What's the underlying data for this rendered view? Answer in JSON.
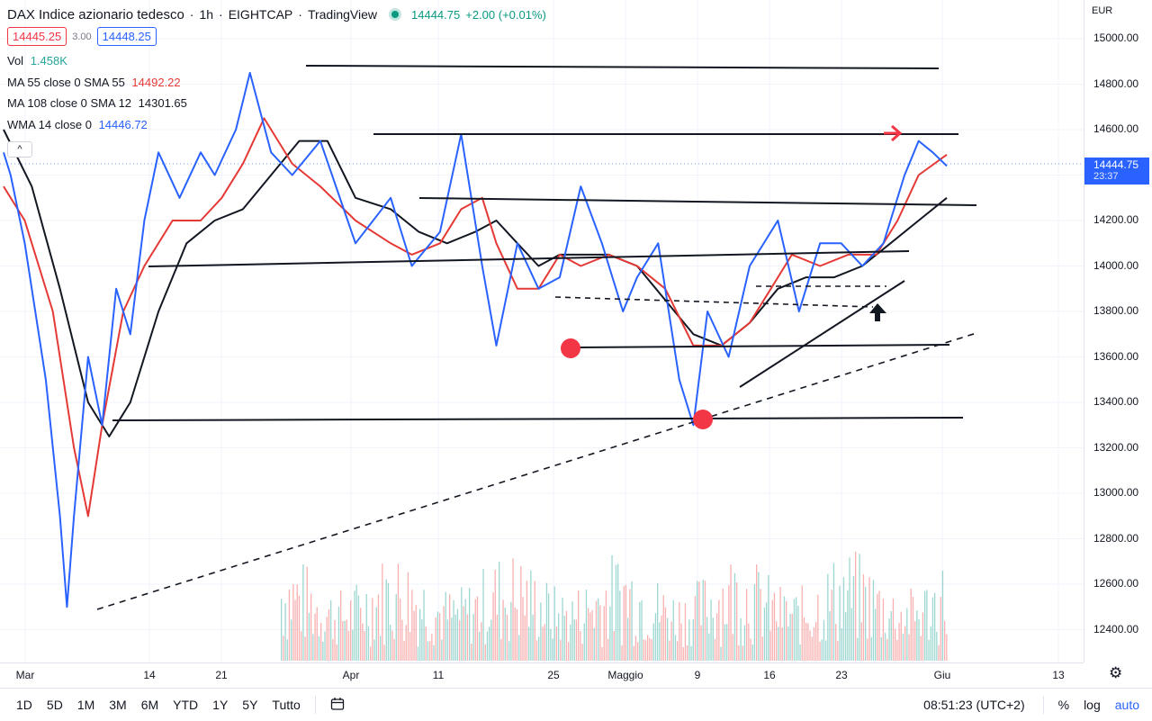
{
  "header": {
    "symbol": "DAX Indice azionario tedesco",
    "interval": "1h",
    "broker": "EIGHTCAP",
    "platform": "TradingView",
    "last_price": "14444.75",
    "change": "+2.00 (+0.01%)",
    "bid": "14445.25",
    "spread": "3.00",
    "ask": "14448.25"
  },
  "indicators": [
    {
      "name": "Vol",
      "value": "1.458K",
      "color": "#26a69a"
    },
    {
      "name": "MA 55 close 0 SMA 55",
      "value": "14492.22",
      "color": "#e53935"
    },
    {
      "name": "MA 108 close 0 SMA 12",
      "value": "14301.65",
      "color": "#131722"
    },
    {
      "name": "WMA 14 close 0",
      "value": "14446.72",
      "color": "#2962ff"
    }
  ],
  "collapse_symbol": "^",
  "price_axis": {
    "currency": "EUR",
    "labels": [
      "15000.00",
      "14800.00",
      "14600.00",
      "14400.00",
      "14200.00",
      "14000.00",
      "13800.00",
      "13600.00",
      "13400.00",
      "13200.00",
      "13000.00",
      "12800.00",
      "12600.00",
      "12400.00"
    ],
    "current_price": "14444.75",
    "countdown": "23:37"
  },
  "time_axis": {
    "labels": [
      "Mar",
      "14",
      "21",
      "Apr",
      "11",
      "25",
      "Maggio",
      "9",
      "16",
      "23",
      "Giu",
      "13"
    ]
  },
  "bottom_bar": {
    "timeframes": [
      "1D",
      "5D",
      "1M",
      "3M",
      "6M",
      "YTD",
      "1Y",
      "5Y",
      "Tutto"
    ],
    "clock": "08:51:23 (UTC+2)",
    "percent": "%",
    "log": "log",
    "auto": "auto"
  },
  "icons": {
    "settings": "gear-icon",
    "calendar": "calendar-range-icon",
    "live": "live-status-dot"
  },
  "colors": {
    "price_line": "#2962ff",
    "ma55": "#e53935",
    "ma108": "#131722",
    "annotation_red": "#f23645",
    "volume_up": "#26a69a",
    "volume_down": "#ef5350"
  },
  "chart_data": {
    "type": "line",
    "y_range": [
      12300,
      15060
    ],
    "series": [
      {
        "name": "WMA 14 close 0",
        "points": [
          [
            0,
            14500
          ],
          [
            0.01,
            14400
          ],
          [
            0.03,
            14100
          ],
          [
            0.06,
            13500
          ],
          [
            0.08,
            12900
          ],
          [
            0.09,
            12500
          ],
          [
            0.1,
            12900
          ],
          [
            0.12,
            13600
          ],
          [
            0.14,
            13300
          ],
          [
            0.16,
            13900
          ],
          [
            0.18,
            13700
          ],
          [
            0.2,
            14200
          ],
          [
            0.22,
            14500
          ],
          [
            0.25,
            14300
          ],
          [
            0.28,
            14500
          ],
          [
            0.3,
            14400
          ],
          [
            0.33,
            14600
          ],
          [
            0.35,
            14850
          ],
          [
            0.38,
            14500
          ],
          [
            0.41,
            14400
          ],
          [
            0.45,
            14550
          ],
          [
            0.5,
            14100
          ],
          [
            0.55,
            14300
          ],
          [
            0.58,
            14000
          ],
          [
            0.62,
            14150
          ],
          [
            0.65,
            14580
          ],
          [
            0.68,
            14000
          ],
          [
            0.7,
            13650
          ],
          [
            0.73,
            14100
          ],
          [
            0.76,
            13900
          ],
          [
            0.79,
            13950
          ],
          [
            0.82,
            14350
          ],
          [
            0.85,
            14100
          ],
          [
            0.88,
            13800
          ],
          [
            0.9,
            13950
          ],
          [
            0.93,
            14100
          ],
          [
            0.96,
            13500
          ],
          [
            0.98,
            13300
          ],
          [
            1.0,
            13800
          ],
          [
            1.03,
            13600
          ],
          [
            1.06,
            14000
          ],
          [
            1.1,
            14200
          ],
          [
            1.13,
            13800
          ],
          [
            1.16,
            14100
          ],
          [
            1.19,
            14100
          ],
          [
            1.22,
            14000
          ],
          [
            1.25,
            14100
          ],
          [
            1.28,
            14400
          ],
          [
            1.3,
            14550
          ],
          [
            1.32,
            14500
          ],
          [
            1.34,
            14440
          ]
        ]
      },
      {
        "name": "MA 55 close 0 SMA 55",
        "points": [
          [
            0,
            14350
          ],
          [
            0.03,
            14200
          ],
          [
            0.07,
            13800
          ],
          [
            0.1,
            13200
          ],
          [
            0.12,
            12900
          ],
          [
            0.14,
            13300
          ],
          [
            0.17,
            13800
          ],
          [
            0.2,
            14000
          ],
          [
            0.24,
            14200
          ],
          [
            0.28,
            14200
          ],
          [
            0.31,
            14300
          ],
          [
            0.34,
            14450
          ],
          [
            0.37,
            14650
          ],
          [
            0.41,
            14450
          ],
          [
            0.45,
            14350
          ],
          [
            0.5,
            14200
          ],
          [
            0.55,
            14100
          ],
          [
            0.58,
            14050
          ],
          [
            0.62,
            14100
          ],
          [
            0.65,
            14250
          ],
          [
            0.68,
            14300
          ],
          [
            0.7,
            14100
          ],
          [
            0.73,
            13900
          ],
          [
            0.76,
            13900
          ],
          [
            0.79,
            14050
          ],
          [
            0.82,
            14000
          ],
          [
            0.86,
            14050
          ],
          [
            0.9,
            14000
          ],
          [
            0.94,
            13900
          ],
          [
            0.98,
            13650
          ],
          [
            1.02,
            13650
          ],
          [
            1.06,
            13750
          ],
          [
            1.09,
            13900
          ],
          [
            1.12,
            14050
          ],
          [
            1.16,
            14000
          ],
          [
            1.2,
            14050
          ],
          [
            1.24,
            14050
          ],
          [
            1.27,
            14200
          ],
          [
            1.3,
            14400
          ],
          [
            1.34,
            14490
          ]
        ]
      },
      {
        "name": "MA 108 close 0 SMA 12",
        "points": [
          [
            0,
            14600
          ],
          [
            0.04,
            14350
          ],
          [
            0.08,
            13900
          ],
          [
            0.12,
            13400
          ],
          [
            0.15,
            13250
          ],
          [
            0.18,
            13400
          ],
          [
            0.22,
            13800
          ],
          [
            0.26,
            14100
          ],
          [
            0.3,
            14200
          ],
          [
            0.34,
            14250
          ],
          [
            0.38,
            14400
          ],
          [
            0.42,
            14550
          ],
          [
            0.46,
            14550
          ],
          [
            0.5,
            14300
          ],
          [
            0.55,
            14250
          ],
          [
            0.59,
            14150
          ],
          [
            0.63,
            14100
          ],
          [
            0.67,
            14150
          ],
          [
            0.7,
            14200
          ],
          [
            0.73,
            14100
          ],
          [
            0.76,
            14000
          ],
          [
            0.79,
            14050
          ],
          [
            0.82,
            14050
          ],
          [
            0.86,
            14050
          ],
          [
            0.9,
            14000
          ],
          [
            0.94,
            13850
          ],
          [
            0.98,
            13700
          ],
          [
            1.02,
            13650
          ],
          [
            1.06,
            13750
          ],
          [
            1.1,
            13900
          ],
          [
            1.14,
            13950
          ],
          [
            1.18,
            13950
          ],
          [
            1.22,
            14000
          ],
          [
            1.26,
            14100
          ],
          [
            1.3,
            14200
          ],
          [
            1.34,
            14300
          ]
        ]
      }
    ]
  }
}
